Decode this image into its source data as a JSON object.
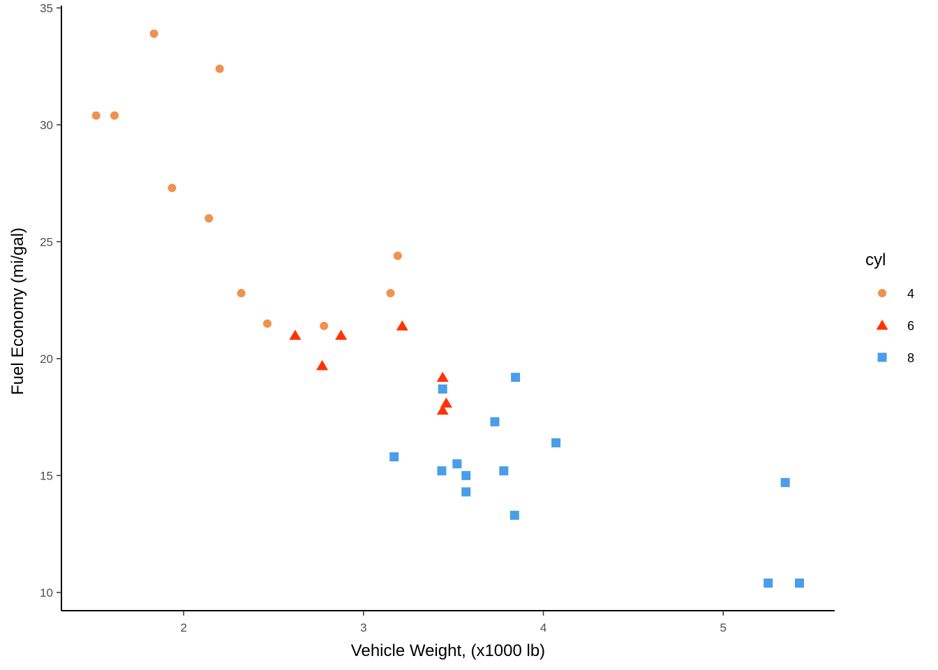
{
  "chart_data": {
    "type": "scatter",
    "title": "",
    "xlabel": "Vehicle Weight, (x1000 lb)",
    "ylabel": "Fuel Economy (mi/gal)",
    "xlim": [
      1.32,
      5.62
    ],
    "ylim": [
      9.22,
      35.1
    ],
    "x_ticks": [
      2,
      3,
      4,
      5
    ],
    "y_ticks": [
      10,
      15,
      20,
      25,
      30,
      35
    ],
    "grid": false,
    "legend": {
      "title": "cyl",
      "position": "right"
    },
    "series": [
      {
        "name": "4",
        "shape": "circle",
        "color": "#f0914e",
        "points": [
          [
            1.513,
            30.4
          ],
          [
            1.615,
            30.4
          ],
          [
            1.835,
            33.9
          ],
          [
            1.935,
            27.3
          ],
          [
            2.14,
            26.0
          ],
          [
            2.2,
            32.4
          ],
          [
            2.32,
            22.8
          ],
          [
            2.465,
            21.5
          ],
          [
            2.78,
            21.4
          ],
          [
            3.15,
            22.8
          ],
          [
            3.19,
            24.4
          ]
        ]
      },
      {
        "name": "6",
        "shape": "triangle",
        "color": "#ff3300",
        "points": [
          [
            2.62,
            21.0
          ],
          [
            2.77,
            19.7
          ],
          [
            2.875,
            21.0
          ],
          [
            3.215,
            21.4
          ],
          [
            3.44,
            19.2
          ],
          [
            3.44,
            17.8
          ],
          [
            3.46,
            18.1
          ]
        ]
      },
      {
        "name": "8",
        "shape": "square",
        "color": "#4a9de9",
        "points": [
          [
            3.17,
            15.8
          ],
          [
            3.435,
            15.2
          ],
          [
            3.44,
            18.7
          ],
          [
            3.52,
            15.5
          ],
          [
            3.57,
            14.3
          ],
          [
            3.57,
            15.0
          ],
          [
            3.73,
            17.3
          ],
          [
            3.78,
            15.2
          ],
          [
            3.84,
            13.3
          ],
          [
            3.845,
            19.2
          ],
          [
            4.07,
            16.4
          ],
          [
            5.25,
            10.4
          ],
          [
            5.345,
            14.7
          ],
          [
            5.424,
            10.4
          ]
        ]
      }
    ]
  }
}
